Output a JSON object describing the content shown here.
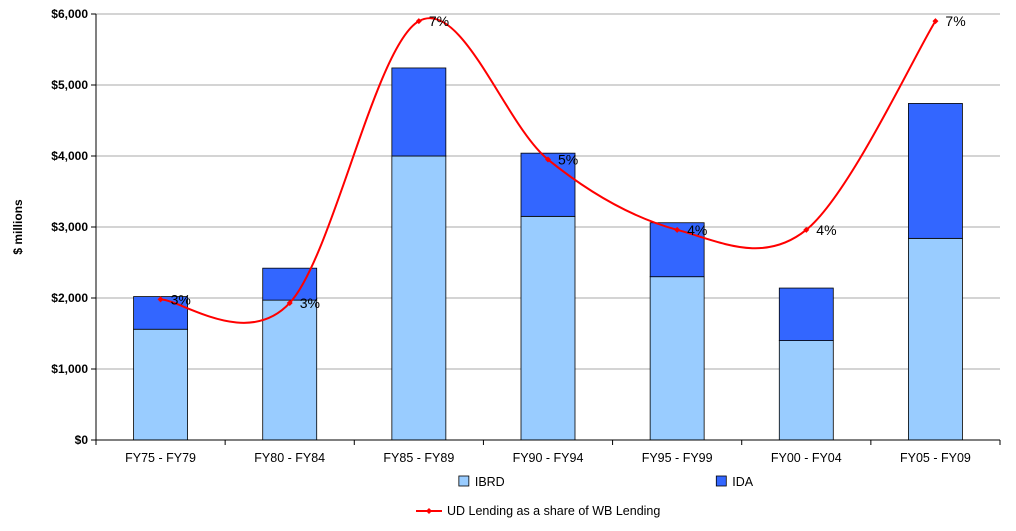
{
  "chart_data": {
    "type": "bar",
    "stacked": true,
    "categories": [
      "FY75 - FY79",
      "FY80 - FY84",
      "FY85 - FY89",
      "FY90 - FY94",
      "FY95 - FY99",
      "FY00 - FY04",
      "FY05 - FY09"
    ],
    "series": [
      {
        "name": "IBRD",
        "color": "#99ccff",
        "values": [
          1560,
          1970,
          4000,
          3150,
          2300,
          1400,
          2840
        ]
      },
      {
        "name": "IDA",
        "color": "#3366ff",
        "values": [
          460,
          450,
          1240,
          890,
          760,
          740,
          1900
        ]
      }
    ],
    "line_series": {
      "name": "UD Lending as a share of WB Lending",
      "color": "#ff0000",
      "values": [
        3,
        3,
        7,
        5,
        4,
        4,
        7
      ],
      "labels": [
        "3%",
        "3%",
        "7%",
        "5%",
        "4%",
        "4%",
        "7%"
      ],
      "marker_y_values": [
        1980,
        1930,
        5900,
        3950,
        2960,
        2960,
        5900
      ]
    },
    "ylabel": "$ millions",
    "xlabel": "",
    "ylim": [
      0,
      6000
    ],
    "yticks": [
      0,
      1000,
      2000,
      3000,
      4000,
      5000,
      6000
    ],
    "ytick_labels": [
      "$0",
      "$1,000",
      "$2,000",
      "$3,000",
      "$4,000",
      "$5,000",
      "$6,000"
    ],
    "grid": true,
    "legend_position": "bottom"
  }
}
